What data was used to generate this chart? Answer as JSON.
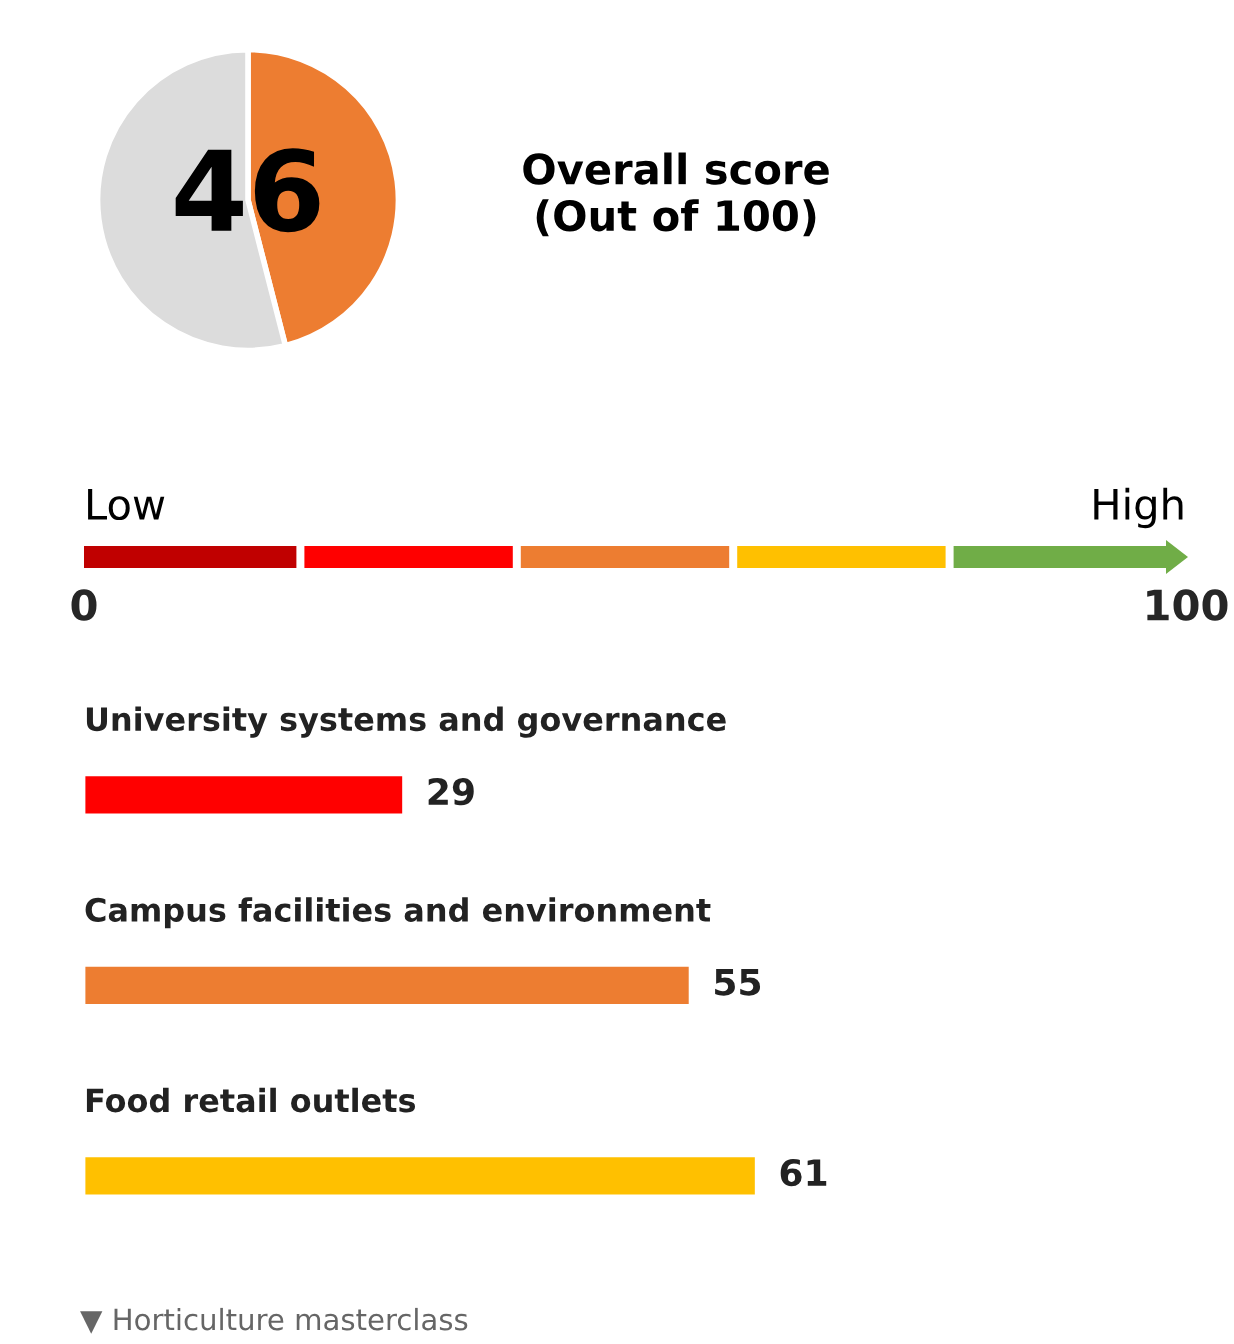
{
  "chart_data": [
    {
      "type": "pie",
      "title": "Overall score\n(Out of 100)",
      "categories": [
        null,
        null
      ],
      "values": [
        46,
        54
      ],
      "colors": [
        "#ed7d31",
        "#dcdcdc"
      ],
      "value_labels": [
        "46",
        null
      ],
      "legend": false
    },
    {
      "type": "bar",
      "orientation": "horizontal",
      "categories": [
        "University systems and governance",
        "Campus facilities and environment",
        "Food retail outlets"
      ],
      "values": [
        29,
        55,
        61
      ],
      "colors": [
        "#ff0000",
        "#ed7d31",
        "#ffc000"
      ],
      "xlim": [
        0,
        100
      ],
      "xticks": [
        0,
        100
      ],
      "data_labels": true,
      "tick_labels": "x",
      "annotations": [
        "Low",
        "High",
        "▼ Horticulture masterclass"
      ]
    }
  ]
}
